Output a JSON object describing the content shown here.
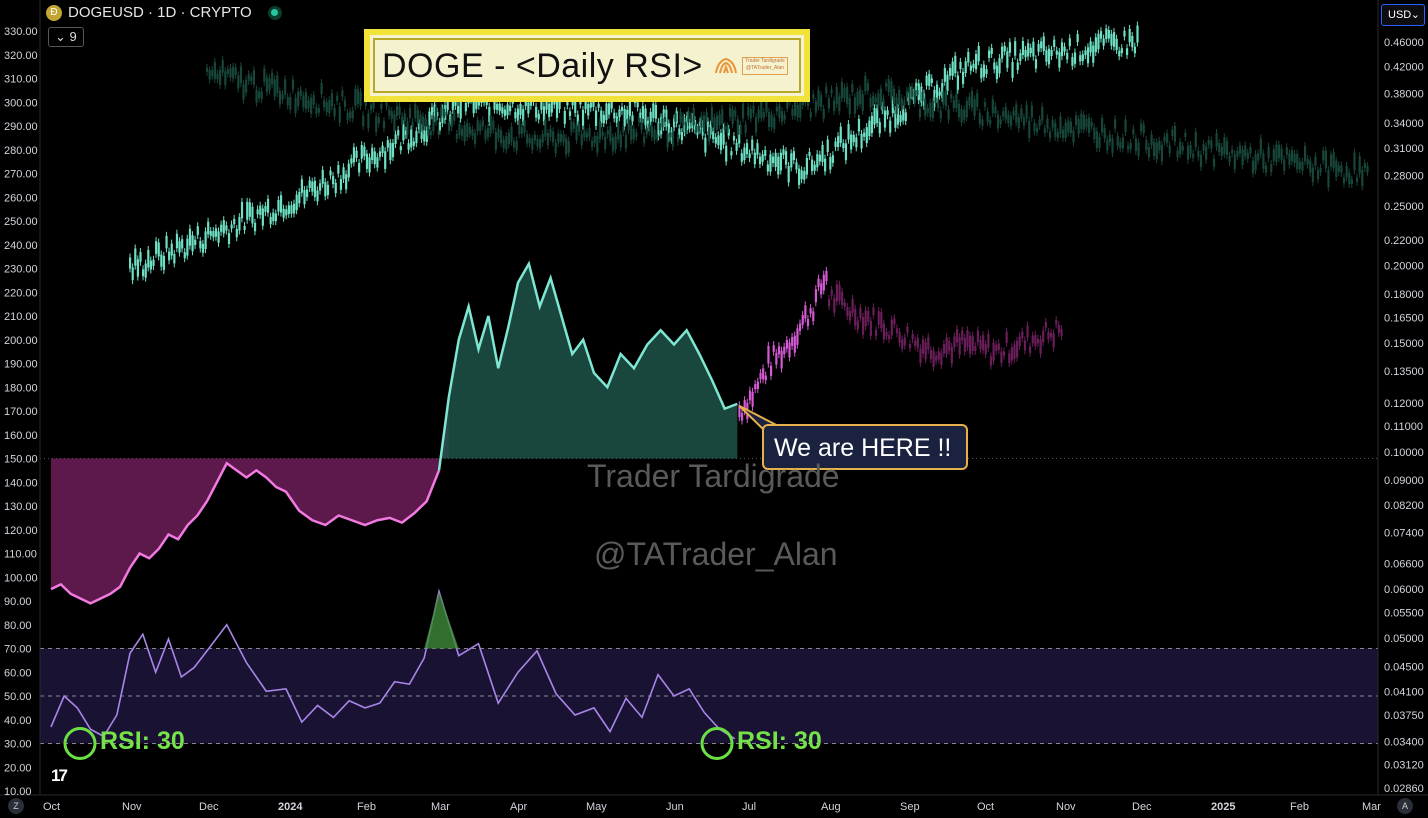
{
  "header": {
    "symbol_line": "DOGEUSD · 1D · CRYPTO",
    "indicator_toggle": "9",
    "currency": "USD"
  },
  "annotation": {
    "title": "DOGE - <Daily RSI>",
    "stamp_text": "Trader Tardigrade @TATrader_Alan",
    "callout": "We are HERE !!",
    "watermark_name": "Trader Tardigrade",
    "watermark_handle": "@TATrader_Alan",
    "rsi_label_1": "RSI: 30",
    "rsi_label_2": "RSI: 30"
  },
  "footer": {
    "left_corner": "Z",
    "right_corner": "A",
    "brand": "17"
  },
  "colors": {
    "pink_line": "#f279e0",
    "pink_fill": "#6d1d58",
    "teal_line": "#7fe6d3",
    "teal_fill": "#1d5448",
    "rsi_line": "#a886e8",
    "rsi_band": "#1a1233",
    "candle_bright": "#6ee0c4",
    "candle_dark": "#17463a",
    "candle_magenta": "#d55ad6",
    "candle_dark_magenta": "#6a1e5a",
    "circle": "#6be045"
  },
  "chart_data": {
    "type": "line",
    "left_axis": {
      "ticks": [
        "330.00",
        "320.00",
        "310.00",
        "300.00",
        "290.00",
        "280.00",
        "270.00",
        "260.00",
        "250.00",
        "240.00",
        "230.00",
        "220.00",
        "210.00",
        "200.00",
        "190.00",
        "180.00",
        "170.00",
        "160.00",
        "150.00",
        "140.00",
        "130.00",
        "120.00",
        "110.00",
        "100.00",
        "90.00",
        "80.00",
        "70.00",
        "60.00",
        "50.00",
        "40.00",
        "30.00",
        "20.00",
        "10.00"
      ],
      "ylim": [
        10,
        330
      ],
      "scale": "linear"
    },
    "right_axis": {
      "ticks": [
        "0.46000",
        "0.42000",
        "0.38000",
        "0.34000",
        "0.31000",
        "0.28000",
        "0.25000",
        "0.22000",
        "0.20000",
        "0.18000",
        "0.16500",
        "0.15000",
        "0.13500",
        "0.12000",
        "0.11000",
        "0.10000",
        "0.09000",
        "0.08200",
        "0.07400",
        "0.06600",
        "0.06000",
        "0.05500",
        "0.05000",
        "0.04500",
        "0.04100",
        "0.03750",
        "0.03400",
        "0.03120",
        "0.02860"
      ],
      "scale": "log"
    },
    "x_axis": {
      "labels": [
        "Oct",
        "Nov",
        "Dec",
        "2024",
        "Feb",
        "Mar",
        "Apr",
        "May",
        "Jun",
        "Jul",
        "Aug",
        "Sep",
        "Oct",
        "Nov",
        "Dec",
        "2025",
        "Feb",
        "Mar"
      ],
      "bold": [
        "2024",
        "2025"
      ]
    },
    "baseline_level": 150,
    "rsi_levels": [
      30,
      50,
      70
    ],
    "rsi_band": [
      30,
      70
    ],
    "series": [
      {
        "style": "area-line",
        "points": [
          [
            "Oct",
            95
          ],
          [
            "Oct",
            97
          ],
          [
            "Oct",
            93
          ],
          [
            "Oct",
            91
          ],
          [
            "Oct",
            89
          ],
          [
            "Oct",
            91
          ],
          [
            "Oct",
            93
          ],
          [
            "Oct",
            96
          ],
          [
            "Nov",
            104
          ],
          [
            "Nov",
            110
          ],
          [
            "Nov",
            108
          ],
          [
            "Nov",
            112
          ],
          [
            "Nov",
            118
          ],
          [
            "Nov",
            116
          ],
          [
            "Nov",
            122
          ],
          [
            "Nov",
            126
          ],
          [
            "Dec",
            132
          ],
          [
            "Dec",
            140
          ],
          [
            "Dec",
            148
          ],
          [
            "Dec",
            145
          ],
          [
            "Dec",
            142
          ],
          [
            "Dec",
            145
          ],
          [
            "Dec",
            142
          ],
          [
            "Dec",
            138
          ],
          [
            "2024",
            136
          ],
          [
            "2024",
            128
          ],
          [
            "2024",
            124
          ],
          [
            "2024",
            122
          ],
          [
            "2024",
            126
          ],
          [
            "2024",
            124
          ],
          [
            "Feb",
            122
          ],
          [
            "Feb",
            124
          ],
          [
            "Feb",
            125
          ],
          [
            "Feb",
            123
          ],
          [
            "Feb",
            127
          ],
          [
            "Feb",
            132
          ],
          [
            "Mar",
            145
          ],
          [
            "Mar",
            176
          ],
          [
            "Mar",
            200
          ],
          [
            "Mar",
            214
          ],
          [
            "Mar",
            196
          ],
          [
            "Mar",
            210
          ],
          [
            "Mar",
            188
          ],
          [
            "Mar",
            205
          ],
          [
            "Apr",
            224
          ],
          [
            "Apr",
            232
          ],
          [
            "Apr",
            214
          ],
          [
            "Apr",
            226
          ],
          [
            "Apr",
            210
          ],
          [
            "Apr",
            194
          ],
          [
            "Apr",
            200
          ],
          [
            "May",
            186
          ],
          [
            "May",
            180
          ],
          [
            "May",
            194
          ],
          [
            "May",
            188
          ],
          [
            "May",
            198
          ],
          [
            "May",
            204
          ],
          [
            "Jun",
            198
          ],
          [
            "Jun",
            204
          ],
          [
            "Jun",
            194
          ],
          [
            "Jun",
            183
          ],
          [
            "Jun",
            171
          ],
          [
            "Jun",
            173
          ]
        ]
      },
      {
        "style": "rsi",
        "points": [
          [
            "Oct",
            37
          ],
          [
            "Oct",
            50
          ],
          [
            "Oct",
            45
          ],
          [
            "Oct",
            36
          ],
          [
            "Oct",
            33
          ],
          [
            "Oct",
            42
          ],
          [
            "Nov",
            68
          ],
          [
            "Nov",
            76
          ],
          [
            "Nov",
            60
          ],
          [
            "Nov",
            74
          ],
          [
            "Nov",
            58
          ],
          [
            "Nov",
            62
          ],
          [
            "Dec",
            69
          ],
          [
            "Dec",
            80
          ],
          [
            "Dec",
            64
          ],
          [
            "Dec",
            52
          ],
          [
            "2024",
            53
          ],
          [
            "2024",
            39
          ],
          [
            "2024",
            46
          ],
          [
            "2024",
            41
          ],
          [
            "2024",
            48
          ],
          [
            "Feb",
            45
          ],
          [
            "Feb",
            47
          ],
          [
            "Feb",
            56
          ],
          [
            "Feb",
            55
          ],
          [
            "Feb",
            66
          ],
          [
            "Mar",
            94
          ],
          [
            "Mar",
            67
          ],
          [
            "Mar",
            72
          ],
          [
            "Mar",
            47
          ],
          [
            "Apr",
            60
          ],
          [
            "Apr",
            69
          ],
          [
            "Apr",
            51
          ],
          [
            "Apr",
            42
          ],
          [
            "May",
            45
          ],
          [
            "May",
            35
          ],
          [
            "May",
            49
          ],
          [
            "May",
            41
          ],
          [
            "May",
            59
          ],
          [
            "Jun",
            50
          ],
          [
            "Jun",
            53
          ],
          [
            "Jun",
            43
          ],
          [
            "Jun",
            36
          ],
          [
            "Jun",
            32
          ]
        ]
      },
      {
        "style": "candles",
        "segments": [
          {
            "color": "magenta",
            "from": "Jun",
            "to": "Aug",
            "levels": [
              170,
              178,
              190,
              196,
              205,
              215,
              230
            ]
          },
          {
            "color": "dark_magenta",
            "from": "Aug",
            "to": "Nov",
            "levels": [
              218,
              210,
              204,
              196,
              198,
              195,
              200,
              205
            ]
          },
          {
            "color": "bright_teal",
            "from": "Nov",
            "to": "Dec",
            "levels": [
              230,
              260,
              300,
              296,
              272,
              316,
              326
            ]
          },
          {
            "color": "dark_teal",
            "from": "Dec",
            "to": "Mar",
            "levels": [
              312,
              296,
              284,
              290,
              304,
              292,
              280,
              270
            ]
          }
        ]
      }
    ]
  }
}
